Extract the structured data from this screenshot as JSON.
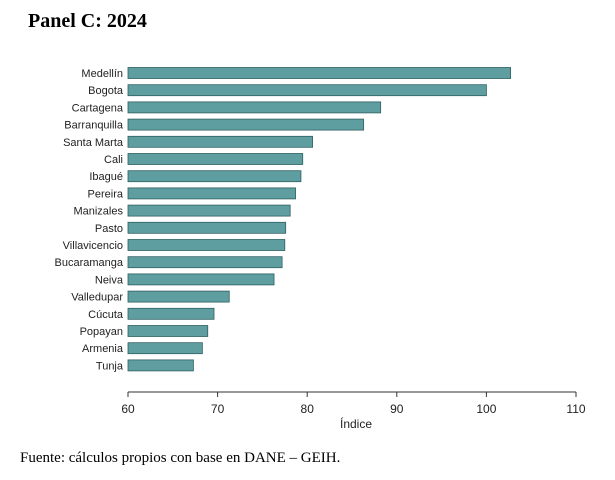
{
  "panel_title": "Panel C: 2024",
  "source_note": "Fuente: cálculos propios con base en DANE – GEIH.",
  "chart_data": {
    "type": "bar",
    "orientation": "horizontal",
    "xlabel": "Índice",
    "ylabel": "",
    "xlim": [
      60,
      110
    ],
    "xticks": [
      60,
      70,
      80,
      90,
      100,
      110
    ],
    "grid": false,
    "bar_color": "#5f9ea0",
    "bar_edge_color": "#2f5f60",
    "categories": [
      "Medellín",
      "Bogota",
      "Cartagena",
      "Barranquilla",
      "Santa Marta",
      "Cali",
      "Ibagué",
      "Pereira",
      "Manizales",
      "Pasto",
      "Villavicencio",
      "Bucaramanga",
      "Neiva",
      "Valledupar",
      "Cúcuta",
      "Popayan",
      "Armenia",
      "Tunja"
    ],
    "values": [
      102.7,
      100.0,
      88.2,
      86.3,
      80.6,
      79.5,
      79.3,
      78.7,
      78.1,
      77.6,
      77.5,
      77.2,
      76.3,
      71.3,
      69.6,
      68.9,
      68.3,
      67.3
    ]
  }
}
